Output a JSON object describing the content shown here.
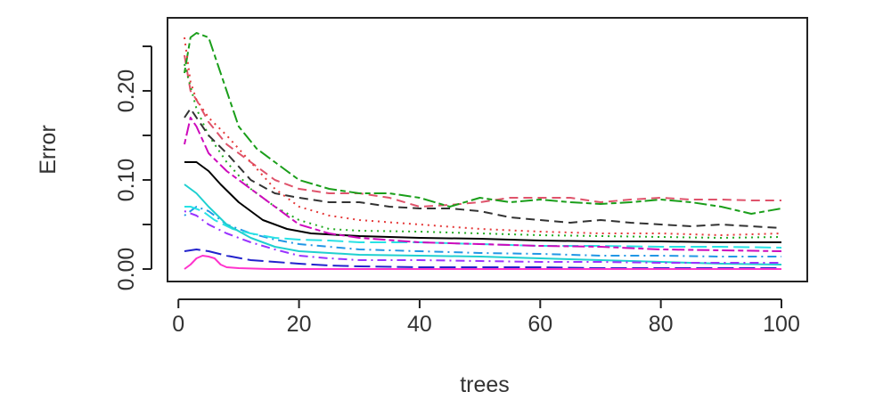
{
  "chart_data": {
    "type": "line",
    "title": "",
    "xlabel": "trees",
    "ylabel": "Error",
    "xlim": [
      0,
      100
    ],
    "ylim": [
      -0.01,
      0.27
    ],
    "x_ticks": [
      0,
      20,
      40,
      60,
      80,
      100
    ],
    "x_tick_labels": [
      "0",
      "20",
      "40",
      "60",
      "80",
      "100"
    ],
    "y_ticks": [
      0.0,
      0.05,
      0.1,
      0.15,
      0.2,
      0.25
    ],
    "y_tick_labels": [
      "0.00",
      "",
      "0.10",
      "",
      "0.20",
      ""
    ],
    "grid": false,
    "legend": "none",
    "series": [
      {
        "color": "#000000",
        "dash": "solid",
        "x": [
          1,
          3,
          5,
          7,
          10,
          14,
          18,
          22,
          30,
          40,
          50,
          60,
          70,
          80,
          90,
          100
        ],
        "y": [
          0.12,
          0.12,
          0.11,
          0.095,
          0.075,
          0.055,
          0.045,
          0.04,
          0.037,
          0.035,
          0.034,
          0.032,
          0.031,
          0.031,
          0.03,
          0.03
        ]
      },
      {
        "color": "#df536b",
        "dash": "dashed",
        "x": [
          1,
          2,
          3,
          5,
          8,
          12,
          16,
          20,
          25,
          30,
          35,
          40,
          45,
          50,
          55,
          60,
          65,
          70,
          75,
          80,
          85,
          90,
          95,
          100
        ],
        "y": [
          0.24,
          0.2,
          0.19,
          0.165,
          0.14,
          0.12,
          0.1,
          0.09,
          0.085,
          0.085,
          0.08,
          0.07,
          0.072,
          0.075,
          0.08,
          0.08,
          0.08,
          0.075,
          0.078,
          0.08,
          0.078,
          0.078,
          0.077,
          0.077
        ]
      },
      {
        "color": "#22aa22",
        "dash": "dotted",
        "x": [
          1,
          3,
          5,
          8,
          12,
          16,
          20,
          25,
          30,
          40,
          50,
          60,
          70,
          80,
          90,
          100
        ],
        "y": [
          0.23,
          0.18,
          0.15,
          0.12,
          0.09,
          0.07,
          0.055,
          0.045,
          0.043,
          0.042,
          0.04,
          0.038,
          0.037,
          0.036,
          0.035,
          0.036
        ]
      },
      {
        "color": "#2297e6",
        "dash": "dotdash",
        "x": [
          1,
          3,
          5,
          8,
          12,
          16,
          20,
          25,
          30,
          40,
          50,
          60,
          70,
          80,
          90,
          100
        ],
        "y": [
          0.06,
          0.07,
          0.065,
          0.05,
          0.04,
          0.033,
          0.028,
          0.025,
          0.022,
          0.02,
          0.018,
          0.017,
          0.015,
          0.015,
          0.014,
          0.014
        ]
      },
      {
        "color": "#28e2e5",
        "dash": "longdash",
        "x": [
          1,
          2,
          4,
          6,
          9,
          12,
          16,
          20,
          25,
          30,
          40,
          50,
          60,
          70,
          80,
          90,
          100
        ],
        "y": [
          0.07,
          0.07,
          0.065,
          0.055,
          0.045,
          0.04,
          0.035,
          0.033,
          0.032,
          0.03,
          0.03,
          0.028,
          0.026,
          0.026,
          0.025,
          0.025,
          0.024
        ]
      },
      {
        "color": "#cd0bbc",
        "dash": "twodash",
        "x": [
          1,
          2,
          3,
          5,
          8,
          12,
          16,
          20,
          25,
          30,
          40,
          50,
          60,
          70,
          80,
          90,
          100
        ],
        "y": [
          0.14,
          0.17,
          0.16,
          0.13,
          0.11,
          0.09,
          0.07,
          0.05,
          0.04,
          0.035,
          0.03,
          0.028,
          0.026,
          0.025,
          0.022,
          0.021,
          0.02
        ]
      },
      {
        "color": "#1a9e1a",
        "dash": "twodash",
        "x": [
          1,
          2,
          3,
          5,
          7,
          10,
          13,
          16,
          20,
          25,
          30,
          35,
          40,
          45,
          50,
          55,
          60,
          65,
          70,
          75,
          80,
          85,
          90,
          95,
          100
        ],
        "y": [
          0.22,
          0.26,
          0.265,
          0.26,
          0.22,
          0.16,
          0.135,
          0.12,
          0.1,
          0.09,
          0.085,
          0.085,
          0.08,
          0.07,
          0.08,
          0.075,
          0.078,
          0.075,
          0.073,
          0.075,
          0.078,
          0.075,
          0.07,
          0.062,
          0.068
        ]
      },
      {
        "color": "#333333",
        "dash": "dashed",
        "x": [
          1,
          2,
          3,
          5,
          8,
          12,
          16,
          20,
          25,
          30,
          35,
          40,
          45,
          50,
          55,
          60,
          65,
          70,
          75,
          80,
          85,
          90,
          95,
          100
        ],
        "y": [
          0.17,
          0.18,
          0.17,
          0.15,
          0.13,
          0.1,
          0.085,
          0.08,
          0.075,
          0.075,
          0.07,
          0.068,
          0.068,
          0.065,
          0.058,
          0.055,
          0.052,
          0.055,
          0.052,
          0.05,
          0.048,
          0.05,
          0.048,
          0.046
        ]
      },
      {
        "color": "#e53a3a",
        "dash": "dotted",
        "x": [
          1,
          2,
          3,
          5,
          8,
          12,
          16,
          20,
          25,
          30,
          40,
          50,
          60,
          70,
          80,
          90,
          100
        ],
        "y": [
          0.26,
          0.21,
          0.19,
          0.17,
          0.15,
          0.12,
          0.09,
          0.07,
          0.06,
          0.055,
          0.05,
          0.045,
          0.042,
          0.04,
          0.04,
          0.038,
          0.04
        ]
      },
      {
        "color": "#1fd0d0",
        "dash": "solid",
        "x": [
          1,
          3,
          5,
          8,
          12,
          16,
          20,
          25,
          30,
          40,
          50,
          60,
          70,
          80,
          90,
          100
        ],
        "y": [
          0.095,
          0.085,
          0.07,
          0.05,
          0.035,
          0.025,
          0.02,
          0.018,
          0.016,
          0.015,
          0.014,
          0.012,
          0.01,
          0.008,
          0.006,
          0.005
        ]
      },
      {
        "color": "#2222cc",
        "dash": "longdash",
        "x": [
          1,
          3,
          5,
          8,
          12,
          16,
          20,
          25,
          30,
          40,
          50,
          60,
          70,
          80,
          90,
          100
        ],
        "y": [
          0.02,
          0.022,
          0.02,
          0.015,
          0.01,
          0.008,
          0.006,
          0.004,
          0.003,
          0.002,
          0.002,
          0.002,
          0.001,
          0.001,
          0.001,
          0.001
        ]
      },
      {
        "color": "#9933ff",
        "dash": "dotdash",
        "x": [
          1,
          3,
          5,
          8,
          12,
          16,
          20,
          25,
          30,
          40,
          50,
          60,
          70,
          80,
          90,
          100
        ],
        "y": [
          0.065,
          0.06,
          0.05,
          0.04,
          0.03,
          0.022,
          0.015,
          0.012,
          0.01,
          0.01,
          0.009,
          0.008,
          0.008,
          0.007,
          0.007,
          0.007
        ]
      },
      {
        "color": "#ff33cc",
        "dash": "solid",
        "x": [
          1,
          2,
          3,
          4,
          5,
          6,
          7,
          8,
          10,
          15,
          20,
          30,
          40,
          50,
          60,
          70,
          80,
          90,
          100
        ],
        "y": [
          0.0,
          0.005,
          0.012,
          0.015,
          0.014,
          0.012,
          0.005,
          0.002,
          0.001,
          0.0,
          0.0,
          0.0,
          0.0,
          0.0,
          0.0,
          0.0,
          0.0,
          0.0,
          0.0
        ]
      }
    ]
  }
}
